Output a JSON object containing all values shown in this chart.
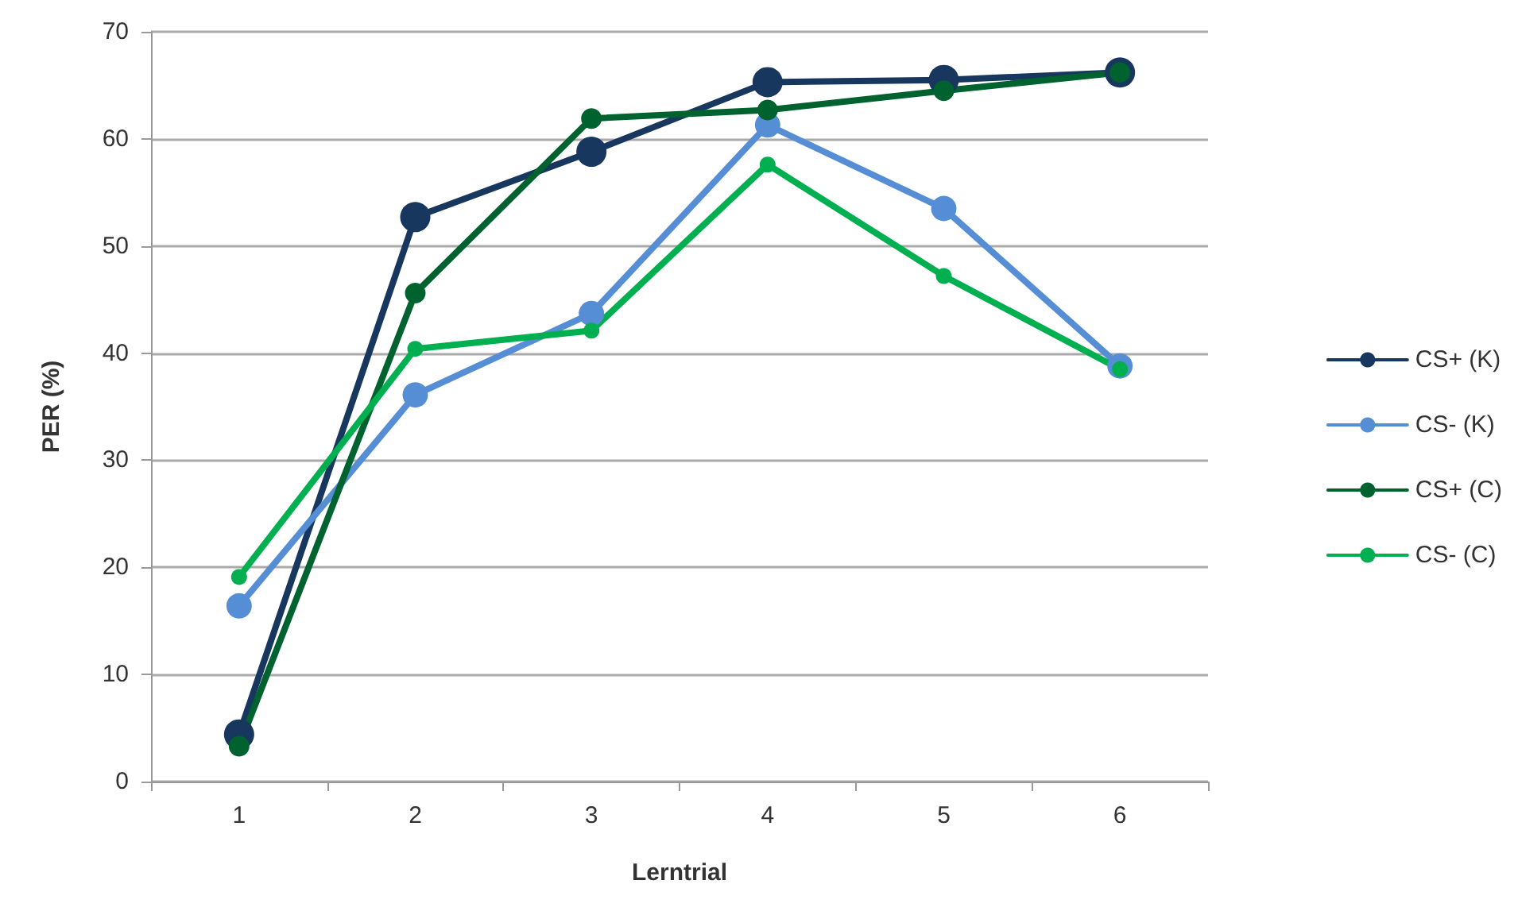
{
  "chart_data": {
    "type": "line",
    "xlabel": "Lerntrial",
    "ylabel": "PER (%)",
    "categories": [
      "1",
      "2",
      "3",
      "4",
      "5",
      "6"
    ],
    "series": [
      {
        "name": "CS+ (K)",
        "color": "#17375e",
        "values": [
          4.4,
          52.7,
          58.8,
          65.3,
          65.5,
          66.2
        ]
      },
      {
        "name": "CS- (K)",
        "color": "#558ed5",
        "values": [
          16.4,
          36.1,
          43.7,
          61.3,
          53.5,
          38.8
        ]
      },
      {
        "name": "CS+ (C)",
        "color": "#00622e",
        "values": [
          3.3,
          45.6,
          61.9,
          62.7,
          64.5,
          66.2
        ]
      },
      {
        "name": "CS- (C)",
        "color": "#00b050",
        "values": [
          19.1,
          40.4,
          42.1,
          57.6,
          47.2,
          38.5
        ]
      }
    ],
    "ylim": [
      0,
      70
    ],
    "yticks": [
      0,
      10,
      20,
      30,
      40,
      50,
      60,
      70
    ],
    "grid": "y",
    "legend": "right",
    "marker": "circle",
    "line_style": "solid"
  }
}
